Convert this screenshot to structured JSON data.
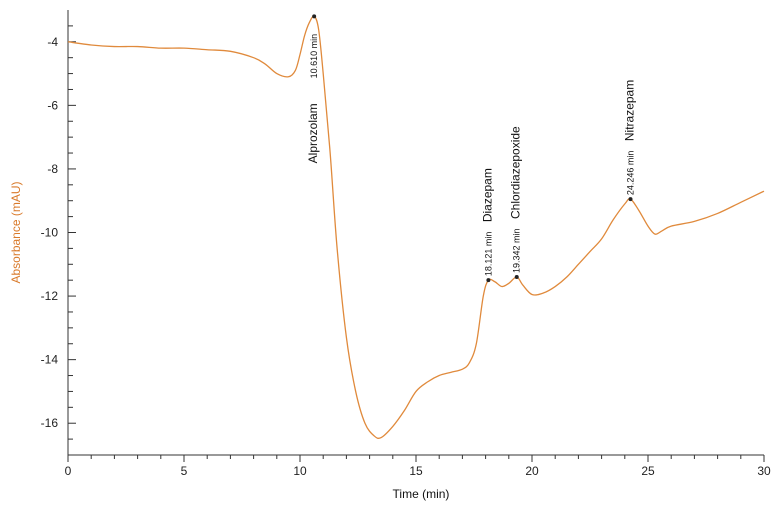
{
  "chart_data": {
    "type": "line",
    "xlabel": "Time (min)",
    "ylabel": "Absorbance (mAU)",
    "xlim": [
      0,
      30
    ],
    "ylim": [
      -17,
      -3
    ],
    "x_ticks": [
      0,
      5,
      10,
      15,
      20,
      25,
      30
    ],
    "y_ticks": [
      -4,
      -6,
      -8,
      -10,
      -12,
      -14,
      -16
    ],
    "grid": false,
    "colors": {
      "trace": "#e08a3c",
      "ylabel": "#d97a2b",
      "axis": "#333333"
    },
    "series": [
      {
        "x": [
          0,
          1,
          2,
          3,
          4,
          5,
          6,
          7,
          8,
          8.5,
          9,
          9.5,
          9.8,
          10.0,
          10.2,
          10.4,
          10.61,
          10.8,
          11.0,
          11.3,
          11.6,
          12.0,
          12.4,
          12.8,
          13.2,
          13.5,
          14.0,
          14.5,
          15.0,
          15.5,
          16.0,
          16.5,
          17.0,
          17.3,
          17.6,
          17.9,
          18.121,
          18.4,
          18.7,
          19.0,
          19.342,
          19.6,
          20.0,
          20.5,
          21.0,
          21.5,
          22.0,
          22.5,
          23.0,
          23.5,
          24.0,
          24.246,
          24.6,
          25.0,
          25.3,
          25.6,
          26.0,
          27.0,
          28.0,
          29.0,
          30.0
        ],
        "y": [
          -4.0,
          -4.1,
          -4.15,
          -4.15,
          -4.2,
          -4.2,
          -4.25,
          -4.3,
          -4.5,
          -4.7,
          -5.0,
          -5.1,
          -4.9,
          -4.4,
          -3.8,
          -3.4,
          -3.2,
          -3.6,
          -5.0,
          -7.5,
          -10.5,
          -13.3,
          -15.0,
          -16.0,
          -16.4,
          -16.45,
          -16.1,
          -15.6,
          -15.0,
          -14.7,
          -14.5,
          -14.4,
          -14.3,
          -14.1,
          -13.5,
          -12.0,
          -11.5,
          -11.55,
          -11.7,
          -11.6,
          -11.4,
          -11.65,
          -11.95,
          -11.9,
          -11.7,
          -11.4,
          -11.0,
          -10.6,
          -10.2,
          -9.6,
          -9.1,
          -8.95,
          -9.3,
          -9.8,
          -10.05,
          -9.95,
          -9.8,
          -9.65,
          -9.4,
          -9.05,
          -8.7
        ]
      }
    ],
    "annotations": [
      {
        "x": 10.61,
        "y": -3.2,
        "name": "Alprozolam",
        "time": "10.610 min"
      },
      {
        "x": 18.121,
        "y": -11.5,
        "name": "Diazepam",
        "time": "18.121 min"
      },
      {
        "x": 19.342,
        "y": -11.4,
        "name": "Chlordiazepoxide",
        "time": "19.342 min"
      },
      {
        "x": 24.246,
        "y": -8.95,
        "name": "Nitrazepam",
        "time": "24.246 min"
      }
    ]
  }
}
